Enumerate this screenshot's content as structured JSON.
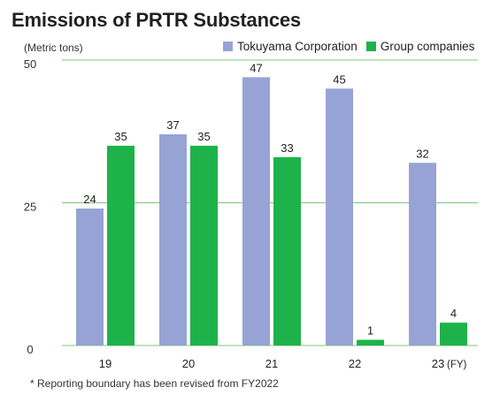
{
  "title": "Emissions of PRTR Substances",
  "unit_label": "(Metric tons)",
  "footnote": "* Reporting boundary has been revised from FY2022",
  "x_suffix": "(FY)",
  "colors": {
    "tokuyama": "#97a3d4",
    "group": "#1db34a",
    "grid": "#7cc87a"
  },
  "chart_data": {
    "type": "bar",
    "categories": [
      "19",
      "20",
      "21",
      "22",
      "23"
    ],
    "series": [
      {
        "name": "Tokuyama Corporation",
        "values": [
          24,
          37,
          47,
          45,
          32
        ]
      },
      {
        "name": "Group companies",
        "values": [
          35,
          35,
          33,
          1,
          4
        ]
      }
    ],
    "yticks": [
      0,
      25,
      50
    ],
    "ylim": [
      0,
      50
    ],
    "xlabel": "(FY)",
    "ylabel": "(Metric tons)",
    "grid": true,
    "legend": "top-right"
  }
}
